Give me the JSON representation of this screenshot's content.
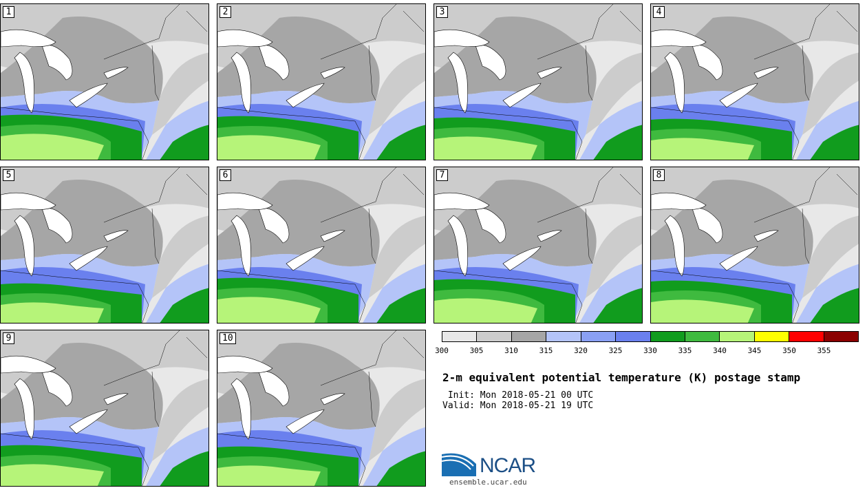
{
  "panels": [
    {
      "label": "1"
    },
    {
      "label": "2"
    },
    {
      "label": "3"
    },
    {
      "label": "4"
    },
    {
      "label": "5"
    },
    {
      "label": "6"
    },
    {
      "label": "7"
    },
    {
      "label": "8"
    },
    {
      "label": "9"
    },
    {
      "label": "10"
    }
  ],
  "colorbar": {
    "colors": [
      "#e8e8e8",
      "#cccccc",
      "#a6a6a6",
      "#b4c4f8",
      "#8aa0f4",
      "#6a80ee",
      "#119c1e",
      "#3fba3f",
      "#b6f479",
      "#ffff00",
      "#ff0000",
      "#8b0000"
    ],
    "ticks": [
      "300",
      "305",
      "310",
      "315",
      "320",
      "325",
      "330",
      "335",
      "340",
      "345",
      "350",
      "355"
    ]
  },
  "title": "2-m equivalent potential temperature (K) postage stamp",
  "init": " Init: Mon 2018-05-21 00 UTC",
  "valid": "Valid: Mon 2018-05-21 19 UTC",
  "logo": {
    "text": "NCAR",
    "url": "ensemble.ucar.edu"
  }
}
